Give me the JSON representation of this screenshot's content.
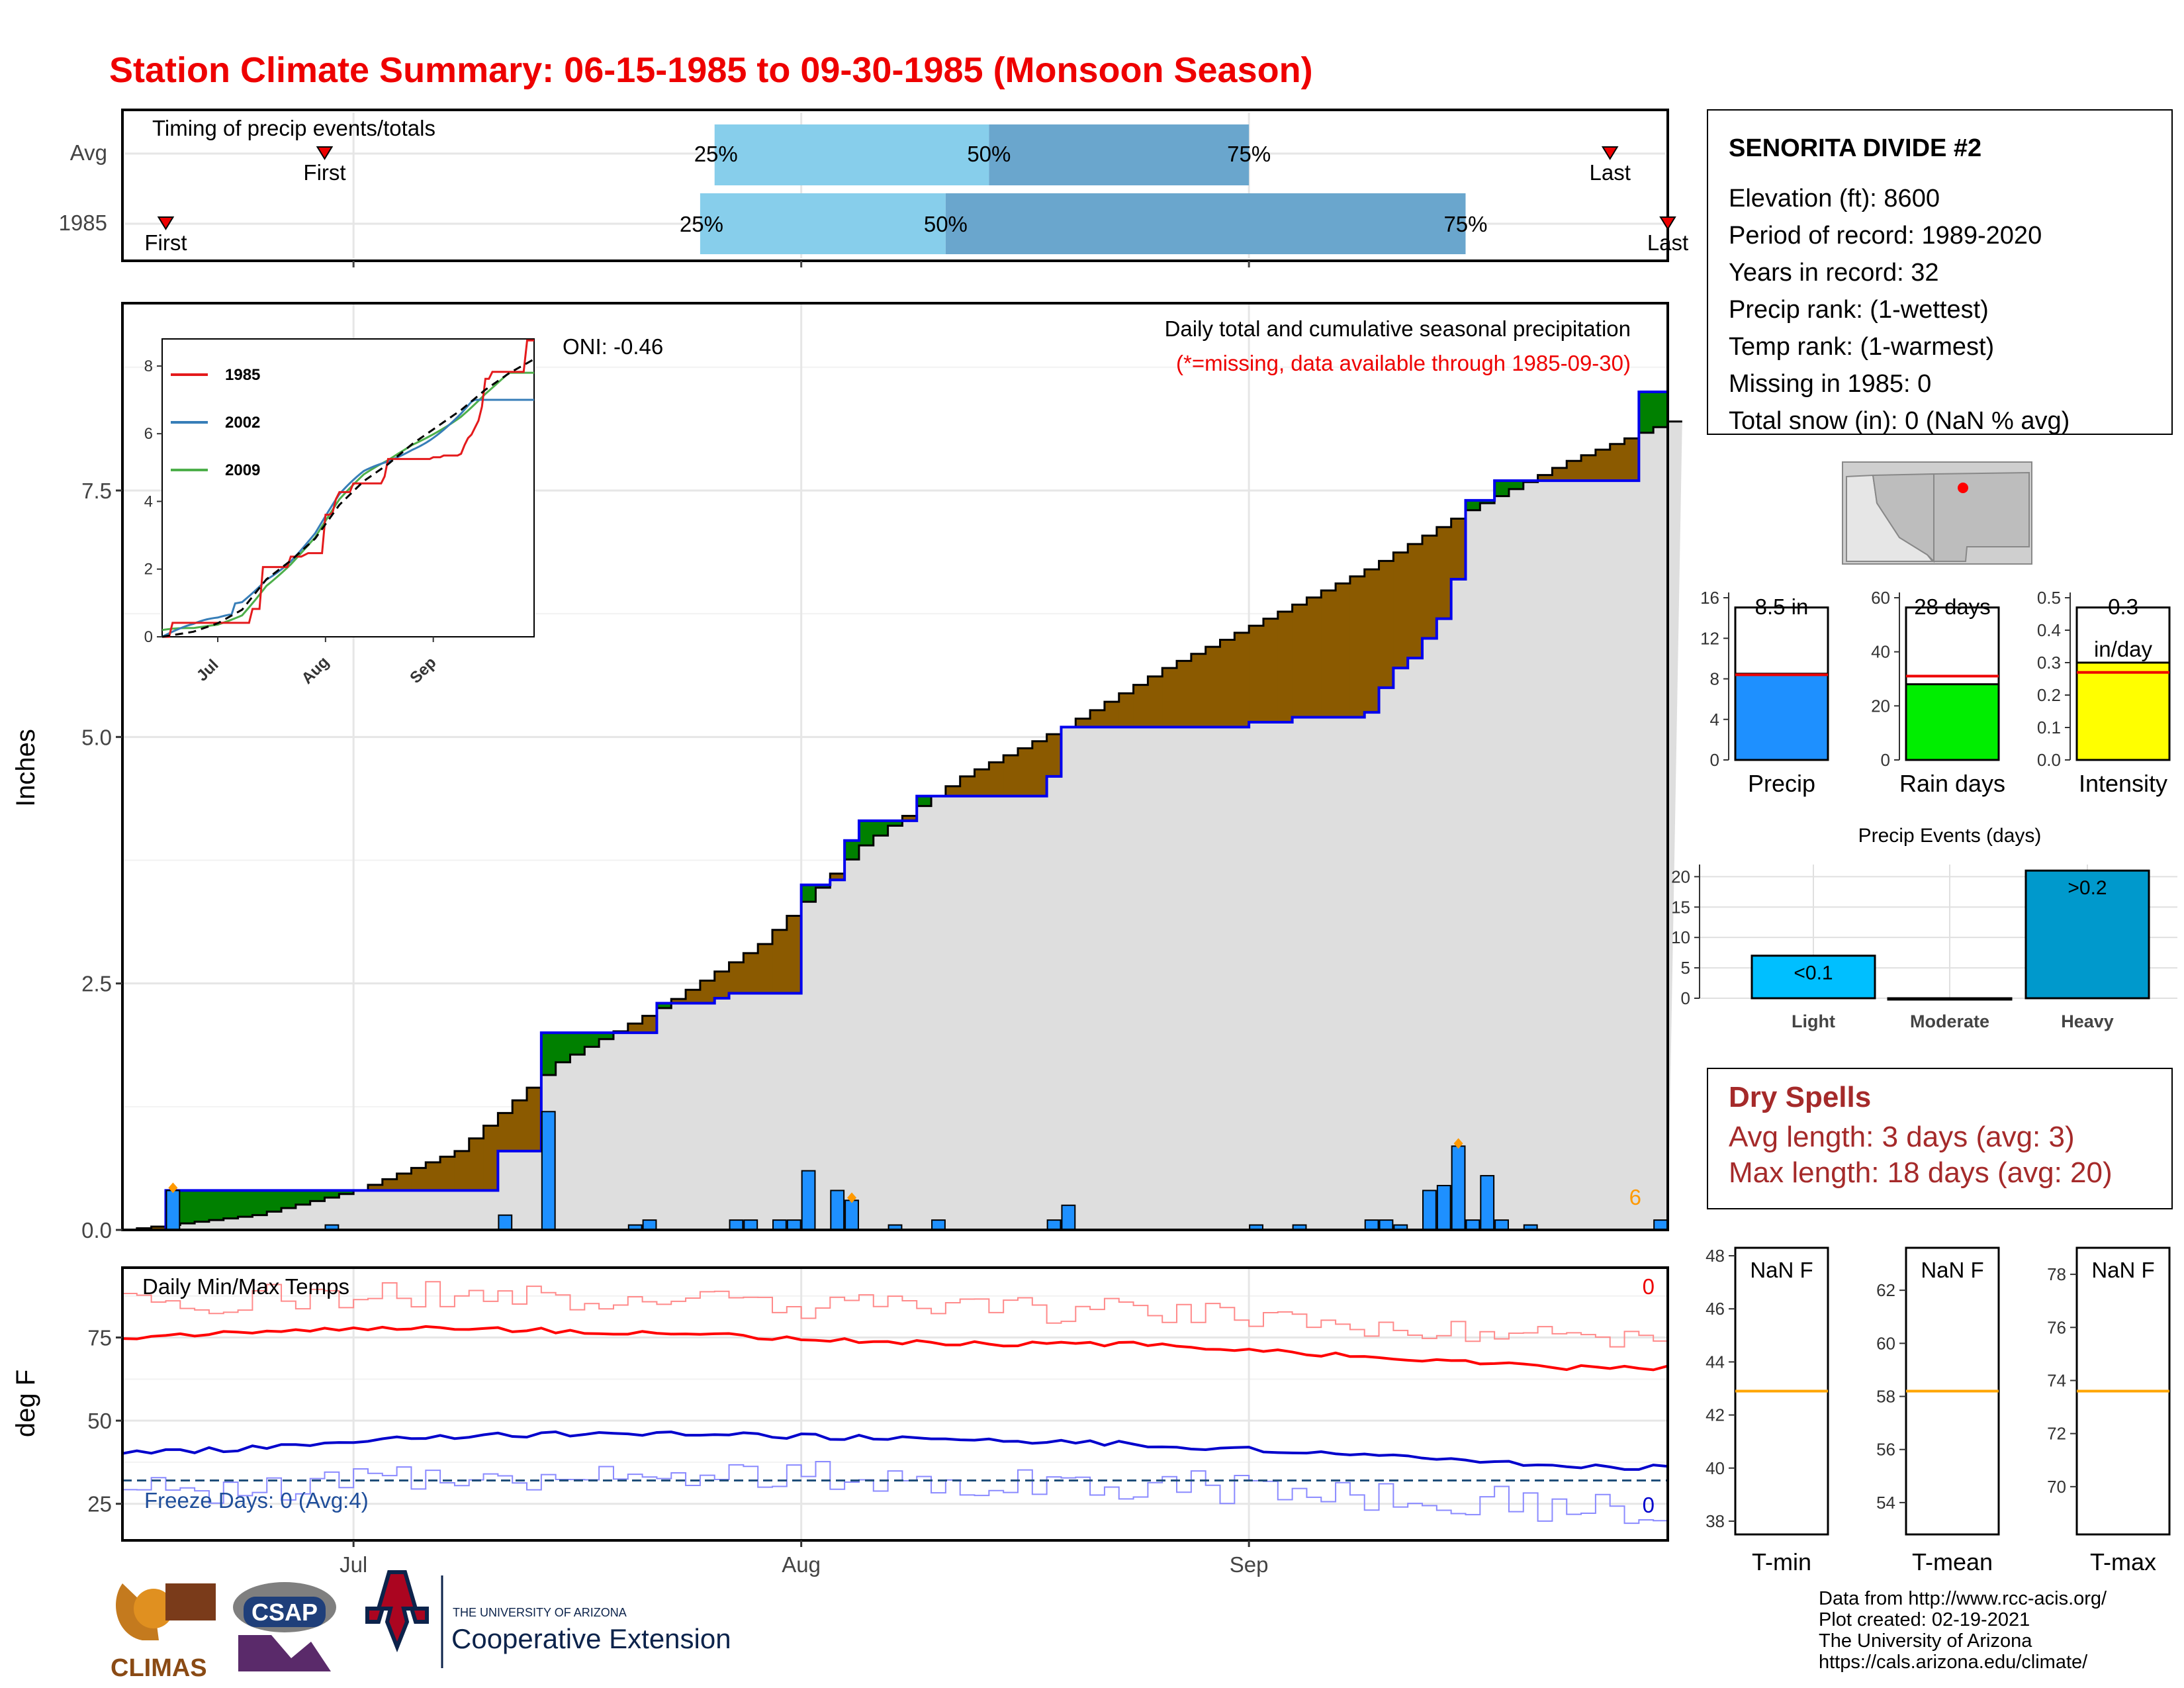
{
  "title": "Station Climate Summary: 06-15-1985 to 09-30-1985 (Monsoon Season)",
  "timing": {
    "title": "Timing of precip events/totals",
    "rows": [
      {
        "label": "Avg",
        "first": "First",
        "last": "Last",
        "p25": "25%",
        "p50": "50%",
        "p75": "75%",
        "first_date": "1985-06-29",
        "last_date": "1985-09-26",
        "q25_date": "1985-07-26",
        "q50_date": "1985-08-14",
        "q75_date": "1985-09-01"
      },
      {
        "label": "1985",
        "first": "First",
        "last": "Last",
        "p25": "25%",
        "p50": "50%",
        "p75": "75%",
        "first_date": "1985-06-18",
        "last_date": "1985-09-30",
        "q25_date": "1985-07-25",
        "q50_date": "1985-08-11",
        "q75_date": "1985-09-16"
      }
    ]
  },
  "station": {
    "name": "SENORITA DIVIDE #2",
    "lines": [
      "Elevation (ft): 8600",
      "Period of record: 1989-2020",
      "Years in record: 32",
      "Precip rank:  (1-wettest)",
      "Temp rank:  (1-warmest)",
      "Missing in 1985: 0",
      "Total snow (in): 0 (NaN % avg)"
    ]
  },
  "main_chart": {
    "ylabel": "Inches",
    "subtitle": "Daily total and cumulative seasonal precipitation",
    "missing_note": "(*=missing, data available through 1985-09-30)",
    "oni": "ONI: -0.46",
    "missing_count": "6",
    "y_ticks": [
      "0.0",
      "2.5",
      "5.0",
      "7.5"
    ]
  },
  "temp_chart": {
    "ylabel": "deg F",
    "title": "Daily Min/Max Temps",
    "freeze_text": "Freeze Days: 0 (Avg:4)",
    "max_count": "0",
    "min_count": "0",
    "y_ticks": [
      "25",
      "50",
      "75"
    ],
    "x_ticks": [
      "Jul",
      "Aug",
      "Sep"
    ],
    "freeze_line": 32
  },
  "inset": {
    "y_ticks": [
      "0",
      "2",
      "4",
      "6",
      "8"
    ],
    "x_ticks": [
      "Jul",
      "Aug",
      "Sep"
    ],
    "legend": [
      {
        "name": "1985",
        "color": "#e41a1c"
      },
      {
        "name": "2002",
        "color": "#377eb8"
      },
      {
        "name": "2009",
        "color": "#4daf4a"
      }
    ]
  },
  "mini_bars": [
    {
      "label": "Precip",
      "value_text": "8.5 in",
      "value": 8.5,
      "avg": 8.4,
      "ymax": 16,
      "ticks": [
        "0",
        "4",
        "8",
        "12",
        "16"
      ],
      "color": "#1e90ff"
    },
    {
      "label": "Rain days",
      "value_text": "28 days",
      "value": 28,
      "avg": 31,
      "ymax": 60,
      "ticks": [
        "0",
        "20",
        "40",
        "60"
      ],
      "color": "#00ee00"
    },
    {
      "label": "Intensity",
      "value_text": "0.3",
      "value_text2": "in/day",
      "value": 0.3,
      "avg": 0.27,
      "ymax": 0.5,
      "ticks": [
        "0.0",
        "0.1",
        "0.2",
        "0.3",
        "0.4",
        "0.5"
      ],
      "color": "#ffff00"
    }
  ],
  "precip_events": {
    "title": "Precip Events (days)",
    "categories": [
      "Light",
      "Moderate",
      "Heavy"
    ],
    "values": [
      7,
      0,
      21
    ],
    "labels": [
      "<0.1",
      "",
      ">0.2"
    ],
    "colors": [
      "#00bfff",
      "#1e7fd4",
      "#0099cc"
    ],
    "ticks": [
      "0",
      "5",
      "10",
      "15",
      "20"
    ]
  },
  "dry_spells": {
    "title": "Dry Spells",
    "avg_line": "Avg length: 3 days (avg: 3)",
    "max_line": "Max length: 18 days (avg: 20)"
  },
  "temp_panels": [
    {
      "label": "T-min",
      "value_text": "NaN F",
      "avg": 42.9,
      "ymin": 37.5,
      "ymax": 48.3,
      "ticks": [
        "38",
        "40",
        "42",
        "44",
        "46",
        "48"
      ]
    },
    {
      "label": "T-mean",
      "value_text": "NaN F",
      "avg": 58.2,
      "ymin": 52.8,
      "ymax": 63.6,
      "ticks": [
        "54",
        "56",
        "58",
        "60",
        "62"
      ]
    },
    {
      "label": "T-max",
      "value_text": "NaN F",
      "avg": 73.6,
      "ymin": 68.2,
      "ymax": 79.0,
      "ticks": [
        "70",
        "72",
        "74",
        "76",
        "78"
      ]
    }
  ],
  "footer": {
    "lines": [
      "Data from http://www.rcc-acis.org/",
      "Plot created: 02-19-2021",
      "The University of Arizona",
      "https://cals.arizona.edu/climate/"
    ],
    "logos": {
      "climas": "CLIMAS",
      "csap": "CSAP",
      "ua_small": "THE UNIVERSITY OF ARIZONA",
      "ua_big": "Cooperative Extension"
    }
  },
  "chart_data": [
    {
      "type": "area",
      "title": "Daily total and cumulative seasonal precipitation",
      "ylabel": "Inches",
      "xlim": [
        "1985-06-15",
        "1985-09-30"
      ],
      "ylim": [
        0,
        9.4
      ],
      "series": [
        {
          "name": "1985",
          "x": [
            "1985-06-15",
            "1985-06-16",
            "1985-06-17",
            "1985-06-18",
            "1985-07-01",
            "1985-07-11",
            "1985-07-14",
            "1985-07-22",
            "1985-07-25",
            "1985-07-26",
            "1985-07-27",
            "1985-08-01",
            "1985-08-03",
            "1985-08-04",
            "1985-08-05",
            "1985-08-09",
            "1985-08-18",
            "1985-08-19",
            "1985-09-01",
            "1985-09-04",
            "1985-09-09",
            "1985-09-10",
            "1985-09-11",
            "1985-09-12",
            "1985-09-13",
            "1985-09-14",
            "1985-09-15",
            "1985-09-16",
            "1985-09-18",
            "1985-09-28",
            "1985-09-30"
          ],
          "y": [
            0,
            0,
            0,
            0.4,
            0.4,
            0.8,
            2.0,
            2.3,
            2.3,
            2.35,
            2.4,
            3.5,
            3.55,
            3.95,
            4.15,
            4.4,
            4.6,
            5.1,
            5.15,
            5.2,
            5.25,
            5.5,
            5.7,
            5.8,
            6.0,
            6.2,
            6.6,
            7.4,
            7.6,
            8.5,
            8.5
          ]
        },
        {
          "name": "Average",
          "x": [
            "1985-06-15",
            "1985-06-24",
            "1985-07-01",
            "1985-07-08",
            "1985-07-15",
            "1985-07-22",
            "1985-07-29",
            "1985-08-05",
            "1985-08-12",
            "1985-08-19",
            "1985-08-26",
            "1985-09-02",
            "1985-09-09",
            "1985-09-16",
            "1985-09-23",
            "1985-09-30"
          ],
          "y": [
            0,
            0.15,
            0.4,
            0.8,
            1.7,
            2.25,
            2.9,
            3.9,
            4.6,
            5.1,
            5.7,
            6.2,
            6.7,
            7.3,
            7.8,
            8.2
          ]
        }
      ],
      "bars": {
        "name": "Daily precip",
        "x": [
          "1985-06-18",
          "1985-06-29",
          "1985-07-11",
          "1985-07-14",
          "1985-07-20",
          "1985-07-21",
          "1985-07-27",
          "1985-07-28",
          "1985-07-30",
          "1985-07-31",
          "1985-08-01",
          "1985-08-03",
          "1985-08-04",
          "1985-08-07",
          "1985-08-10",
          "1985-08-18",
          "1985-08-19",
          "1985-09-01",
          "1985-09-04",
          "1985-09-09",
          "1985-09-10",
          "1985-09-11",
          "1985-09-13",
          "1985-09-14",
          "1985-09-15",
          "1985-09-16",
          "1985-09-17",
          "1985-09-18",
          "1985-09-20",
          "1985-09-29"
        ],
        "y": [
          0.4,
          0.05,
          0.15,
          1.2,
          0.05,
          0.1,
          0.1,
          0.1,
          0.1,
          0.1,
          0.6,
          0.4,
          0.3,
          0.05,
          0.1,
          0.1,
          0.25,
          0.05,
          0.05,
          0.1,
          0.1,
          0.05,
          0.4,
          0.45,
          0.85,
          0.1,
          0.55,
          0.1,
          0.05,
          0.1
        ],
        "color": "#1e90ff"
      }
    },
    {
      "type": "line",
      "title": "Daily Min/Max Temps",
      "ylabel": "deg F",
      "ylim": [
        14,
        96
      ],
      "series": [
        {
          "name": "Max (smoothed)",
          "color": "#ff0000",
          "x_days": [
            0,
            10,
            20,
            30,
            40,
            50,
            60,
            70,
            80,
            90,
            100,
            108
          ],
          "y": [
            75,
            77,
            78,
            77,
            76,
            74,
            73,
            73,
            71,
            68,
            66,
            66
          ]
        },
        {
          "name": "Min (smoothed)",
          "color": "#0000cc",
          "x_days": [
            0,
            10,
            20,
            30,
            40,
            50,
            60,
            70,
            80,
            90,
            100,
            108
          ],
          "y": [
            40,
            42,
            45,
            46,
            46,
            45,
            44,
            43,
            41,
            39,
            36,
            36
          ]
        }
      ]
    },
    {
      "type": "bar",
      "title": "Precip Events (days)",
      "categories": [
        "Light",
        "Moderate",
        "Heavy"
      ],
      "values": [
        7,
        0,
        21
      ]
    }
  ]
}
